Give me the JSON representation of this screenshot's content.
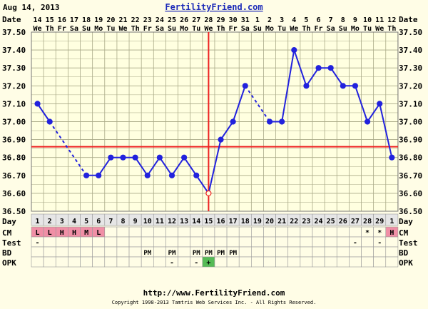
{
  "header": {
    "date": "Aug 14, 2013",
    "site": "FertilityFriend.com"
  },
  "footer": {
    "url": "http://www.FertilityFriend.com",
    "copyright": "Copyright 1998-2013 Tamtris Web Services Inc. - All Rights Reserved."
  },
  "colors": {
    "background": "#fffde6",
    "grid_fill": "#ffffe0",
    "grid_line": "#aaaa88",
    "temp_line": "#2222dd",
    "marker_line": "#ee2222",
    "cm_fill": "#f08fa6",
    "opk_positive_fill": "#55bb55",
    "link": "#1c2ab8"
  },
  "labels": {
    "date": "Date",
    "day": "Day",
    "cm": "CM",
    "test": "Test",
    "bd": "BD",
    "opk": "OPK"
  },
  "columns": [
    {
      "date": "14",
      "dow": "We",
      "day": "1",
      "cm": "L",
      "test": "-",
      "bd": "",
      "opk": ""
    },
    {
      "date": "15",
      "dow": "Th",
      "day": "2",
      "cm": "L",
      "test": "",
      "bd": "",
      "opk": ""
    },
    {
      "date": "16",
      "dow": "Fr",
      "day": "3",
      "cm": "H",
      "test": "",
      "bd": "",
      "opk": ""
    },
    {
      "date": "17",
      "dow": "Sa",
      "day": "4",
      "cm": "H",
      "test": "",
      "bd": "",
      "opk": ""
    },
    {
      "date": "18",
      "dow": "Su",
      "day": "5",
      "cm": "M",
      "test": "",
      "bd": "",
      "opk": ""
    },
    {
      "date": "19",
      "dow": "Mo",
      "day": "6",
      "cm": "L",
      "test": "",
      "bd": "",
      "opk": ""
    },
    {
      "date": "20",
      "dow": "Tu",
      "day": "7",
      "cm": "",
      "test": "",
      "bd": "",
      "opk": ""
    },
    {
      "date": "21",
      "dow": "We",
      "day": "8",
      "cm": "",
      "test": "",
      "bd": "",
      "opk": ""
    },
    {
      "date": "22",
      "dow": "Th",
      "day": "9",
      "cm": "",
      "test": "",
      "bd": "",
      "opk": ""
    },
    {
      "date": "23",
      "dow": "Fr",
      "day": "10",
      "cm": "",
      "test": "",
      "bd": "PM",
      "opk": ""
    },
    {
      "date": "24",
      "dow": "Sa",
      "day": "11",
      "cm": "",
      "test": "",
      "bd": "",
      "opk": ""
    },
    {
      "date": "25",
      "dow": "Su",
      "day": "12",
      "cm": "",
      "test": "",
      "bd": "PM",
      "opk": "-"
    },
    {
      "date": "26",
      "dow": "Mo",
      "day": "13",
      "cm": "",
      "test": "",
      "bd": "",
      "opk": ""
    },
    {
      "date": "27",
      "dow": "Tu",
      "day": "14",
      "cm": "",
      "test": "",
      "bd": "PM",
      "opk": "-"
    },
    {
      "date": "28",
      "dow": "We",
      "day": "15",
      "cm": "",
      "test": "",
      "bd": "PM",
      "opk": "+"
    },
    {
      "date": "29",
      "dow": "Th",
      "day": "16",
      "cm": "",
      "test": "",
      "bd": "PM",
      "opk": ""
    },
    {
      "date": "30",
      "dow": "Fr",
      "day": "17",
      "cm": "",
      "test": "",
      "bd": "PM",
      "opk": ""
    },
    {
      "date": "31",
      "dow": "Sa",
      "day": "18",
      "cm": "",
      "test": "",
      "bd": "",
      "opk": ""
    },
    {
      "date": "1",
      "dow": "Su",
      "day": "19",
      "cm": "",
      "test": "",
      "bd": "",
      "opk": ""
    },
    {
      "date": "2",
      "dow": "Mo",
      "day": "20",
      "cm": "",
      "test": "",
      "bd": "",
      "opk": ""
    },
    {
      "date": "3",
      "dow": "Tu",
      "day": "21",
      "cm": "",
      "test": "",
      "bd": "",
      "opk": ""
    },
    {
      "date": "4",
      "dow": "We",
      "day": "22",
      "cm": "",
      "test": "",
      "bd": "",
      "opk": ""
    },
    {
      "date": "5",
      "dow": "Th",
      "day": "23",
      "cm": "",
      "test": "",
      "bd": "",
      "opk": ""
    },
    {
      "date": "6",
      "dow": "Fr",
      "day": "24",
      "cm": "",
      "test": "",
      "bd": "",
      "opk": ""
    },
    {
      "date": "7",
      "dow": "Sa",
      "day": "25",
      "cm": "",
      "test": "",
      "bd": "",
      "opk": ""
    },
    {
      "date": "8",
      "dow": "Su",
      "day": "26",
      "cm": "",
      "test": "",
      "bd": "",
      "opk": ""
    },
    {
      "date": "9",
      "dow": "Mo",
      "day": "27",
      "cm": "",
      "test": "-",
      "bd": "",
      "opk": ""
    },
    {
      "date": "10",
      "dow": "Tu",
      "day": "28",
      "cm": "*",
      "test": "",
      "bd": "",
      "opk": ""
    },
    {
      "date": "11",
      "dow": "We",
      "day": "29",
      "cm": "*",
      "test": "-",
      "bd": "",
      "opk": ""
    },
    {
      "date": "12",
      "dow": "Th",
      "day": "1",
      "cm": "H",
      "test": "",
      "bd": "",
      "opk": ""
    }
  ],
  "chart_data": {
    "type": "line",
    "y_unit": "°C",
    "ylim": [
      36.5,
      37.5
    ],
    "yticks": [
      "36.50",
      "36.60",
      "36.70",
      "36.80",
      "36.90",
      "37.00",
      "37.10",
      "37.20",
      "37.30",
      "37.40",
      "37.50"
    ],
    "grid": true,
    "series": [
      {
        "values": [
          37.1,
          37.0,
          null,
          null,
          36.7,
          36.7,
          36.8,
          36.8,
          36.8,
          36.7,
          36.8,
          36.7,
          36.8,
          36.7,
          36.6,
          36.9,
          37.0,
          37.2,
          null,
          37.0,
          37.0,
          37.4,
          37.2,
          37.3,
          37.3,
          37.2,
          37.2,
          37.0,
          37.1,
          36.8
        ]
      }
    ],
    "coverline": 36.86,
    "ovulation_day": 15,
    "hollow_points": [
      15
    ]
  }
}
